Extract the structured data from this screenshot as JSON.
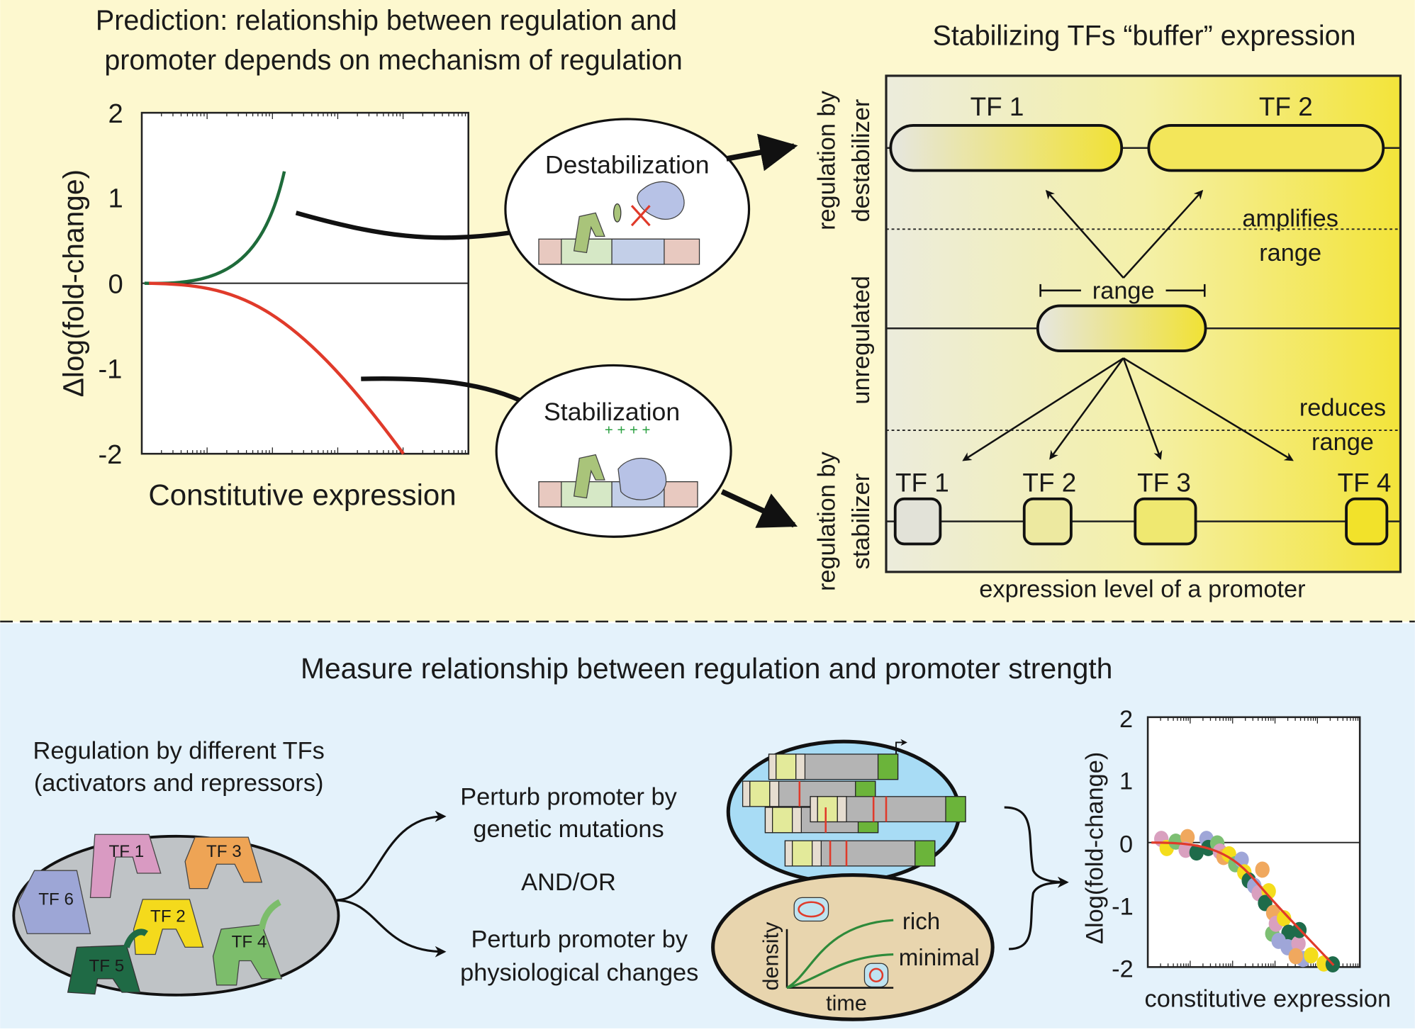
{
  "top": {
    "title_line1": "Prediction: relationship between regulation and",
    "title_line2": "promoter depends on mechanism of regulation",
    "plot": {
      "ylabel": "Δlog(fold-change)",
      "xlabel": "Constitutive expression",
      "yticks": [
        "2",
        "1",
        "0",
        "-1",
        "-2"
      ]
    },
    "destabilization_label": "Destabilization",
    "stabilization_label": "Stabilization",
    "buffer_title": "Stabilizing TFs “buffer” expression",
    "row_labels": {
      "destab_1": "regulation by",
      "destab_2": "destabilizer",
      "unregulated": "unregulated",
      "stab_1": "regulation by",
      "stab_2": "stabilizer"
    },
    "destab_tfs": [
      "TF 1",
      "TF 2"
    ],
    "stab_tfs": [
      "TF 1",
      "TF 2",
      "TF 3",
      "TF 4"
    ],
    "range_label": "range",
    "amplifies_1": "amplifies",
    "amplifies_2": "range",
    "reduces_1": "reduces",
    "reduces_2": "range",
    "xaxis_label": "expression level of a promoter"
  },
  "bottom": {
    "title": "Measure relationship between regulation and promoter strength",
    "tf_heading_1": "Regulation by different TFs",
    "tf_heading_2": "(activators and repressors)",
    "tfs": [
      "TF 1",
      "TF 2",
      "TF 3",
      "TF 4",
      "TF 5",
      "TF 6"
    ],
    "genetic_1": "Perturb promoter by",
    "genetic_2": "genetic mutations",
    "andor": "AND/OR",
    "physio_1": "Perturb promoter by",
    "physio_2": "physiological changes",
    "growth": {
      "ylabel": "density",
      "xlabel": "time",
      "rich": "rich",
      "minimal": "minimal"
    },
    "plot": {
      "ylabel": "Δlog(fold-change)",
      "xlabel": "constitutive expression",
      "yticks": [
        "2",
        "1",
        "0",
        "-1",
        "-2"
      ]
    }
  },
  "colors": {
    "top_bg": "#fdf8cf",
    "bottom_bg": "#e4f2fb",
    "activator_curve": "#1e6b3a",
    "repressor_curve": "#e03a2a",
    "dot_colors": [
      "#d9a0bf",
      "#7dbf73",
      "#f0a85e",
      "#9fa6d8",
      "#f4dd1c",
      "#1e6b4a"
    ]
  }
}
